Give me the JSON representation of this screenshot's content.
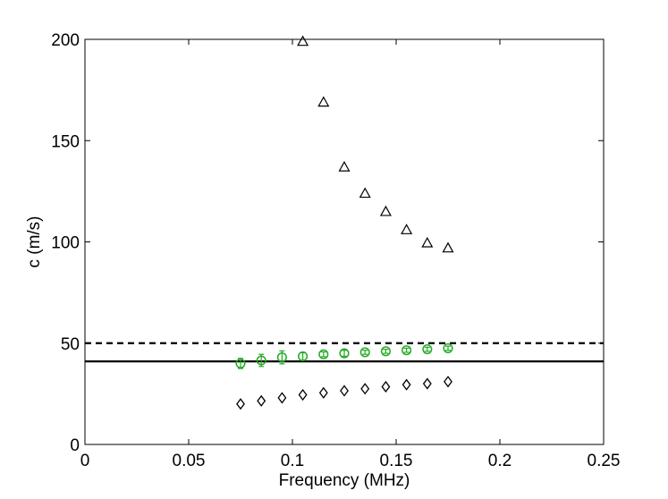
{
  "chart_data": {
    "type": "scatter",
    "xlabel": "Frequency (MHz)",
    "ylabel": "c (m/s)",
    "xlim": [
      0,
      0.25
    ],
    "ylim": [
      0,
      200
    ],
    "x_ticks": [
      "0",
      "0.05",
      "0.1",
      "0.15",
      "0.2",
      "0.25"
    ],
    "x_tick_values": [
      0,
      0.05,
      0.1,
      0.15,
      0.2,
      0.25
    ],
    "y_ticks": [
      "0",
      "50",
      "100",
      "150",
      "200"
    ],
    "y_tick_values": [
      0,
      50,
      100,
      150,
      200
    ],
    "grid": false,
    "series": [
      {
        "marker": "triangle",
        "color": "#000000",
        "x": [
          0.105,
          0.115,
          0.125,
          0.135,
          0.145,
          0.155,
          0.165,
          0.175
        ],
        "y": [
          199,
          169,
          137,
          124,
          115,
          106,
          99.5,
          97
        ]
      },
      {
        "marker": "circle",
        "color": "#22aa22",
        "error_bars": true,
        "x": [
          0.075,
          0.085,
          0.095,
          0.105,
          0.115,
          0.125,
          0.135,
          0.145,
          0.155,
          0.165,
          0.175
        ],
        "y": [
          40,
          41.5,
          43,
          43.5,
          44.5,
          45,
          45.5,
          46,
          46.5,
          47,
          47.5
        ],
        "err": [
          2.5,
          3,
          3.2,
          1.8,
          1.2,
          1.5,
          1,
          1,
          1,
          1,
          1
        ]
      },
      {
        "marker": "diamond",
        "color": "#000000",
        "x": [
          0.075,
          0.085,
          0.095,
          0.105,
          0.115,
          0.125,
          0.135,
          0.145,
          0.155,
          0.165,
          0.175
        ],
        "y": [
          20,
          21.5,
          23,
          24.5,
          25.5,
          26.5,
          27.5,
          28.5,
          29.5,
          30,
          31
        ]
      }
    ],
    "reference_lines": [
      {
        "style": "dashed",
        "color": "#000000",
        "y": 50
      },
      {
        "style": "solid",
        "color": "#000000",
        "y": 41
      }
    ]
  }
}
